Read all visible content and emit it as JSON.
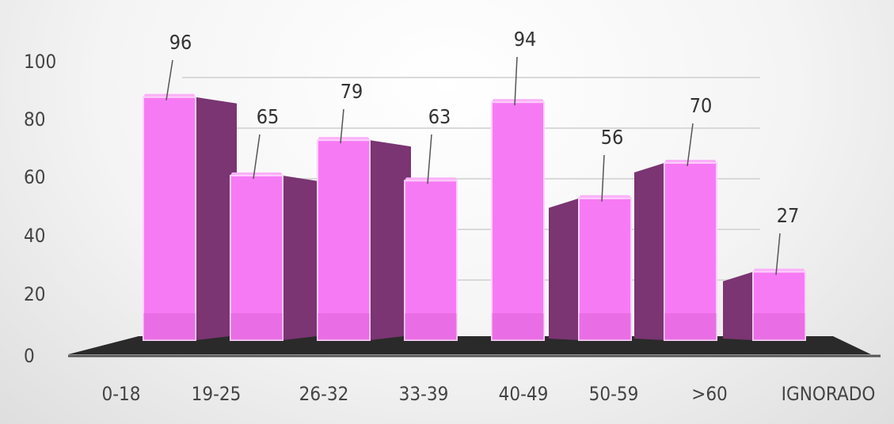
{
  "chart_data": {
    "type": "bar",
    "categories": [
      "0-18",
      "19-25",
      "26-32",
      "33-39",
      "40-49",
      "50-59",
      ">60",
      "IGNORADO"
    ],
    "values": [
      96,
      65,
      79,
      63,
      94,
      56,
      70,
      27
    ],
    "ylim": [
      0,
      100
    ],
    "yticks": [
      0,
      20,
      40,
      60,
      80,
      100
    ],
    "title": "",
    "xlabel": "",
    "ylabel": "",
    "grid": true,
    "legend": "none",
    "style": "3d-column",
    "colors": {
      "bar_front": "#f77af5",
      "bar_top": "#fbb0f8",
      "bar_side": "#7a3572",
      "floor": "#2a2a2a",
      "axis": "#555555"
    }
  }
}
